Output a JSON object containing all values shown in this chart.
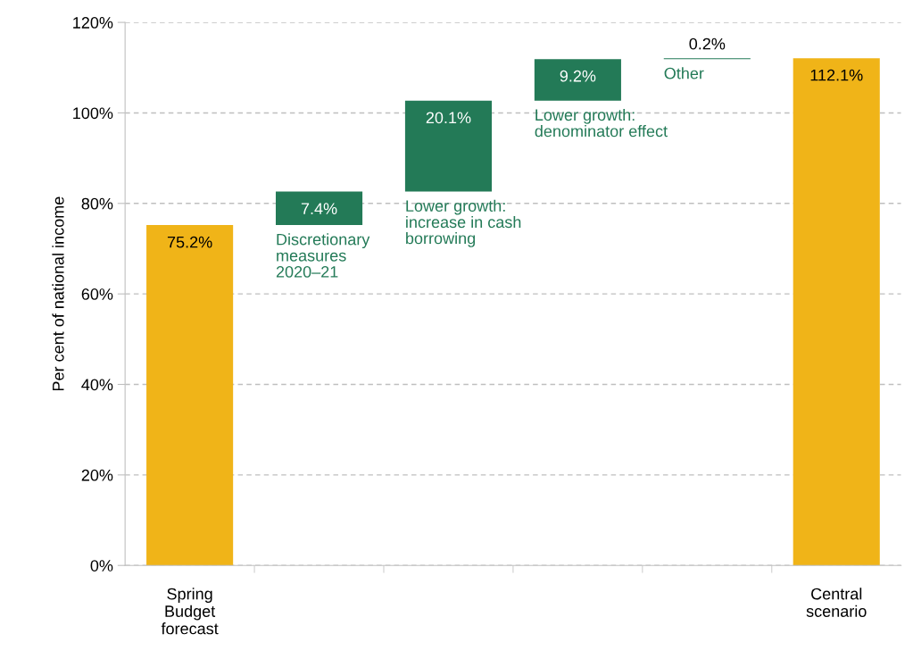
{
  "chart_data": {
    "type": "bar",
    "ylabel": "Per cent of national income",
    "categories": [
      "Spring\nBudget\nforecast",
      null,
      null,
      null,
      null,
      "Central\nscenario"
    ],
    "values": [
      75.2,
      7.4,
      20.1,
      9.2,
      0.2,
      112.1
    ],
    "base": [
      0,
      75.2,
      82.6,
      102.7,
      111.9,
      0
    ],
    "colors": [
      "#f0b418",
      "#237a57",
      "#237a57",
      "#237a57",
      "#237a57",
      "#f0b418"
    ],
    "value_labels": [
      "75.2%",
      "7.4%",
      "20.1%",
      "9.2%",
      "0.2%",
      "112.1%"
    ],
    "annotations": [
      "Discretionary\nmeasures\n2020–21",
      "Lower growth:\nincrease in cash\nborrowing",
      "Lower growth:\ndenominator effect",
      "Other"
    ],
    "ylim": [
      0,
      120
    ],
    "yticks": [
      {
        "value": 0,
        "label": "0%"
      },
      {
        "value": 20,
        "label": "20%"
      },
      {
        "value": 40,
        "label": "40%"
      },
      {
        "value": 60,
        "label": "60%"
      },
      {
        "value": 80,
        "label": "80%"
      },
      {
        "value": 100,
        "label": "100%"
      },
      {
        "value": 120,
        "label": "120%"
      }
    ],
    "grid": "y",
    "legend": false
  }
}
